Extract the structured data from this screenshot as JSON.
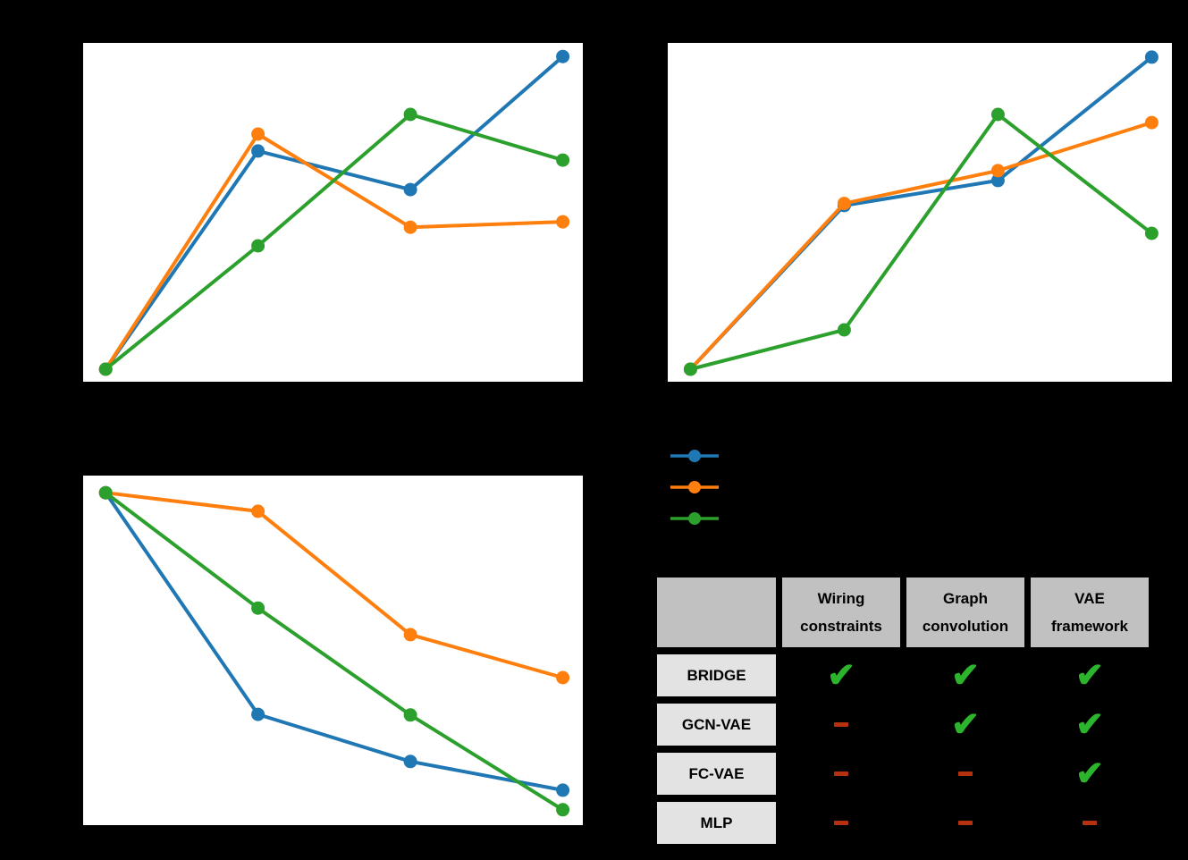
{
  "figure": {
    "background_color": "#000000",
    "panel_color": "#ffffff"
  },
  "legend": {
    "note": "legend label text not visible (black text on black background)",
    "entries": [
      {
        "name": "series-blue",
        "color": "#1f77b4"
      },
      {
        "name": "series-orange",
        "color": "#ff7f0e"
      },
      {
        "name": "series-green",
        "color": "#2ca02c"
      }
    ]
  },
  "chart_data": [
    {
      "id": "top-left",
      "type": "line",
      "title": "",
      "xlabel": "",
      "ylabel": "",
      "axes_visible": false,
      "note": "axis ticks/labels/title not visible (black on black); y values are normalized 0-1 height within plot box, x normalized 0-1 width",
      "x": [
        0.045,
        0.35,
        0.655,
        0.96
      ],
      "series": [
        {
          "name": "blue",
          "color": "#1f77b4",
          "y": [
            0.037,
            0.681,
            0.567,
            0.96
          ]
        },
        {
          "name": "orange",
          "color": "#ff7f0e",
          "y": [
            0.037,
            0.731,
            0.456,
            0.472
          ]
        },
        {
          "name": "green",
          "color": "#2ca02c",
          "y": [
            0.037,
            0.401,
            0.789,
            0.654
          ]
        }
      ]
    },
    {
      "id": "top-right",
      "type": "line",
      "title": "",
      "xlabel": "",
      "ylabel": "",
      "axes_visible": false,
      "note": "axis ticks/labels/title not visible (black on black); y values are normalized 0-1 height within plot box, x normalized 0-1 width",
      "x": [
        0.045,
        0.35,
        0.655,
        0.96
      ],
      "series": [
        {
          "name": "blue",
          "color": "#1f77b4",
          "y": [
            0.037,
            0.52,
            0.594,
            0.958
          ]
        },
        {
          "name": "orange",
          "color": "#ff7f0e",
          "y": [
            0.037,
            0.526,
            0.623,
            0.765
          ]
        },
        {
          "name": "green",
          "color": "#2ca02c",
          "y": [
            0.037,
            0.153,
            0.789,
            0.438
          ]
        }
      ]
    },
    {
      "id": "bottom-left",
      "type": "line",
      "title": "",
      "xlabel": "",
      "ylabel": "",
      "axes_visible": false,
      "note": "axis ticks/labels/title not visible (black on black); y values are normalized 0-1 height within plot box, x normalized 0-1 width",
      "x": [
        0.045,
        0.35,
        0.655,
        0.96
      ],
      "series": [
        {
          "name": "blue",
          "color": "#1f77b4",
          "y": [
            0.951,
            0.317,
            0.182,
            0.1
          ]
        },
        {
          "name": "orange",
          "color": "#ff7f0e",
          "y": [
            0.951,
            0.898,
            0.545,
            0.422
          ]
        },
        {
          "name": "green",
          "color": "#2ca02c",
          "y": [
            0.951,
            0.621,
            0.315,
            0.044
          ]
        }
      ]
    }
  ],
  "table": {
    "corner_label": "",
    "columns": [
      {
        "line1": "Wiring",
        "line2": "constraints"
      },
      {
        "line1": "Graph",
        "line2": "convolution"
      },
      {
        "line1": "VAE",
        "line2": "framework"
      }
    ],
    "rows": [
      {
        "label": "BRIDGE",
        "values": [
          "yes",
          "yes",
          "yes"
        ]
      },
      {
        "label": "GCN-VAE",
        "values": [
          "no",
          "yes",
          "yes"
        ]
      },
      {
        "label": "FC-VAE",
        "values": [
          "no",
          "no",
          "yes"
        ]
      },
      {
        "label": "MLP",
        "values": [
          "no",
          "no",
          "no"
        ]
      }
    ],
    "symbols": {
      "yes_glyph": "✔",
      "yes_color": "#2cb52c",
      "no_color": "#b5310f"
    },
    "colors": {
      "header_bg": "#c1c1c1",
      "row_label_bg": "#e3e3e3",
      "border": "#000000",
      "text": "#000000"
    }
  }
}
